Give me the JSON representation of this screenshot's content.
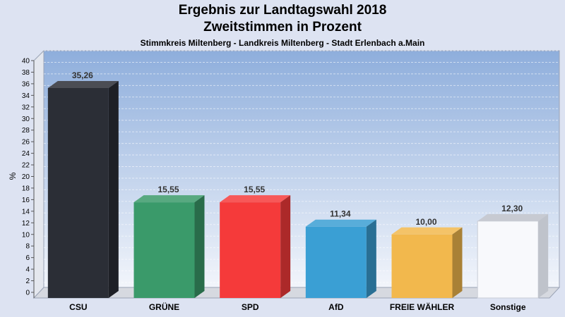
{
  "chart_data": {
    "type": "bar",
    "title": "Ergebnis zur Landtagswahl 2018",
    "subtitle": "Zweitstimmen in Prozent",
    "caption": "Stimmkreis Miltenberg - Landkreis Miltenberg - Stadt Erlenbach a.Main",
    "ylabel": "%",
    "xlabel": "",
    "ylim": [
      0,
      40
    ],
    "ytick_step": 2,
    "grid": true,
    "categories": [
      "CSU",
      "GRÜNE",
      "SPD",
      "AfD",
      "FREIE WÄHLER",
      "Sonstige"
    ],
    "values": [
      35.26,
      15.55,
      15.55,
      11.34,
      10.0,
      12.3
    ],
    "value_labels": [
      "35,26",
      "15,55",
      "15,55",
      "11,34",
      "10,00",
      "12,30"
    ],
    "colors": [
      "#2b2e36",
      "#3a9a6a",
      "#f53a3a",
      "#3a9fd4",
      "#f2b84d",
      "#f8f9fc"
    ]
  }
}
